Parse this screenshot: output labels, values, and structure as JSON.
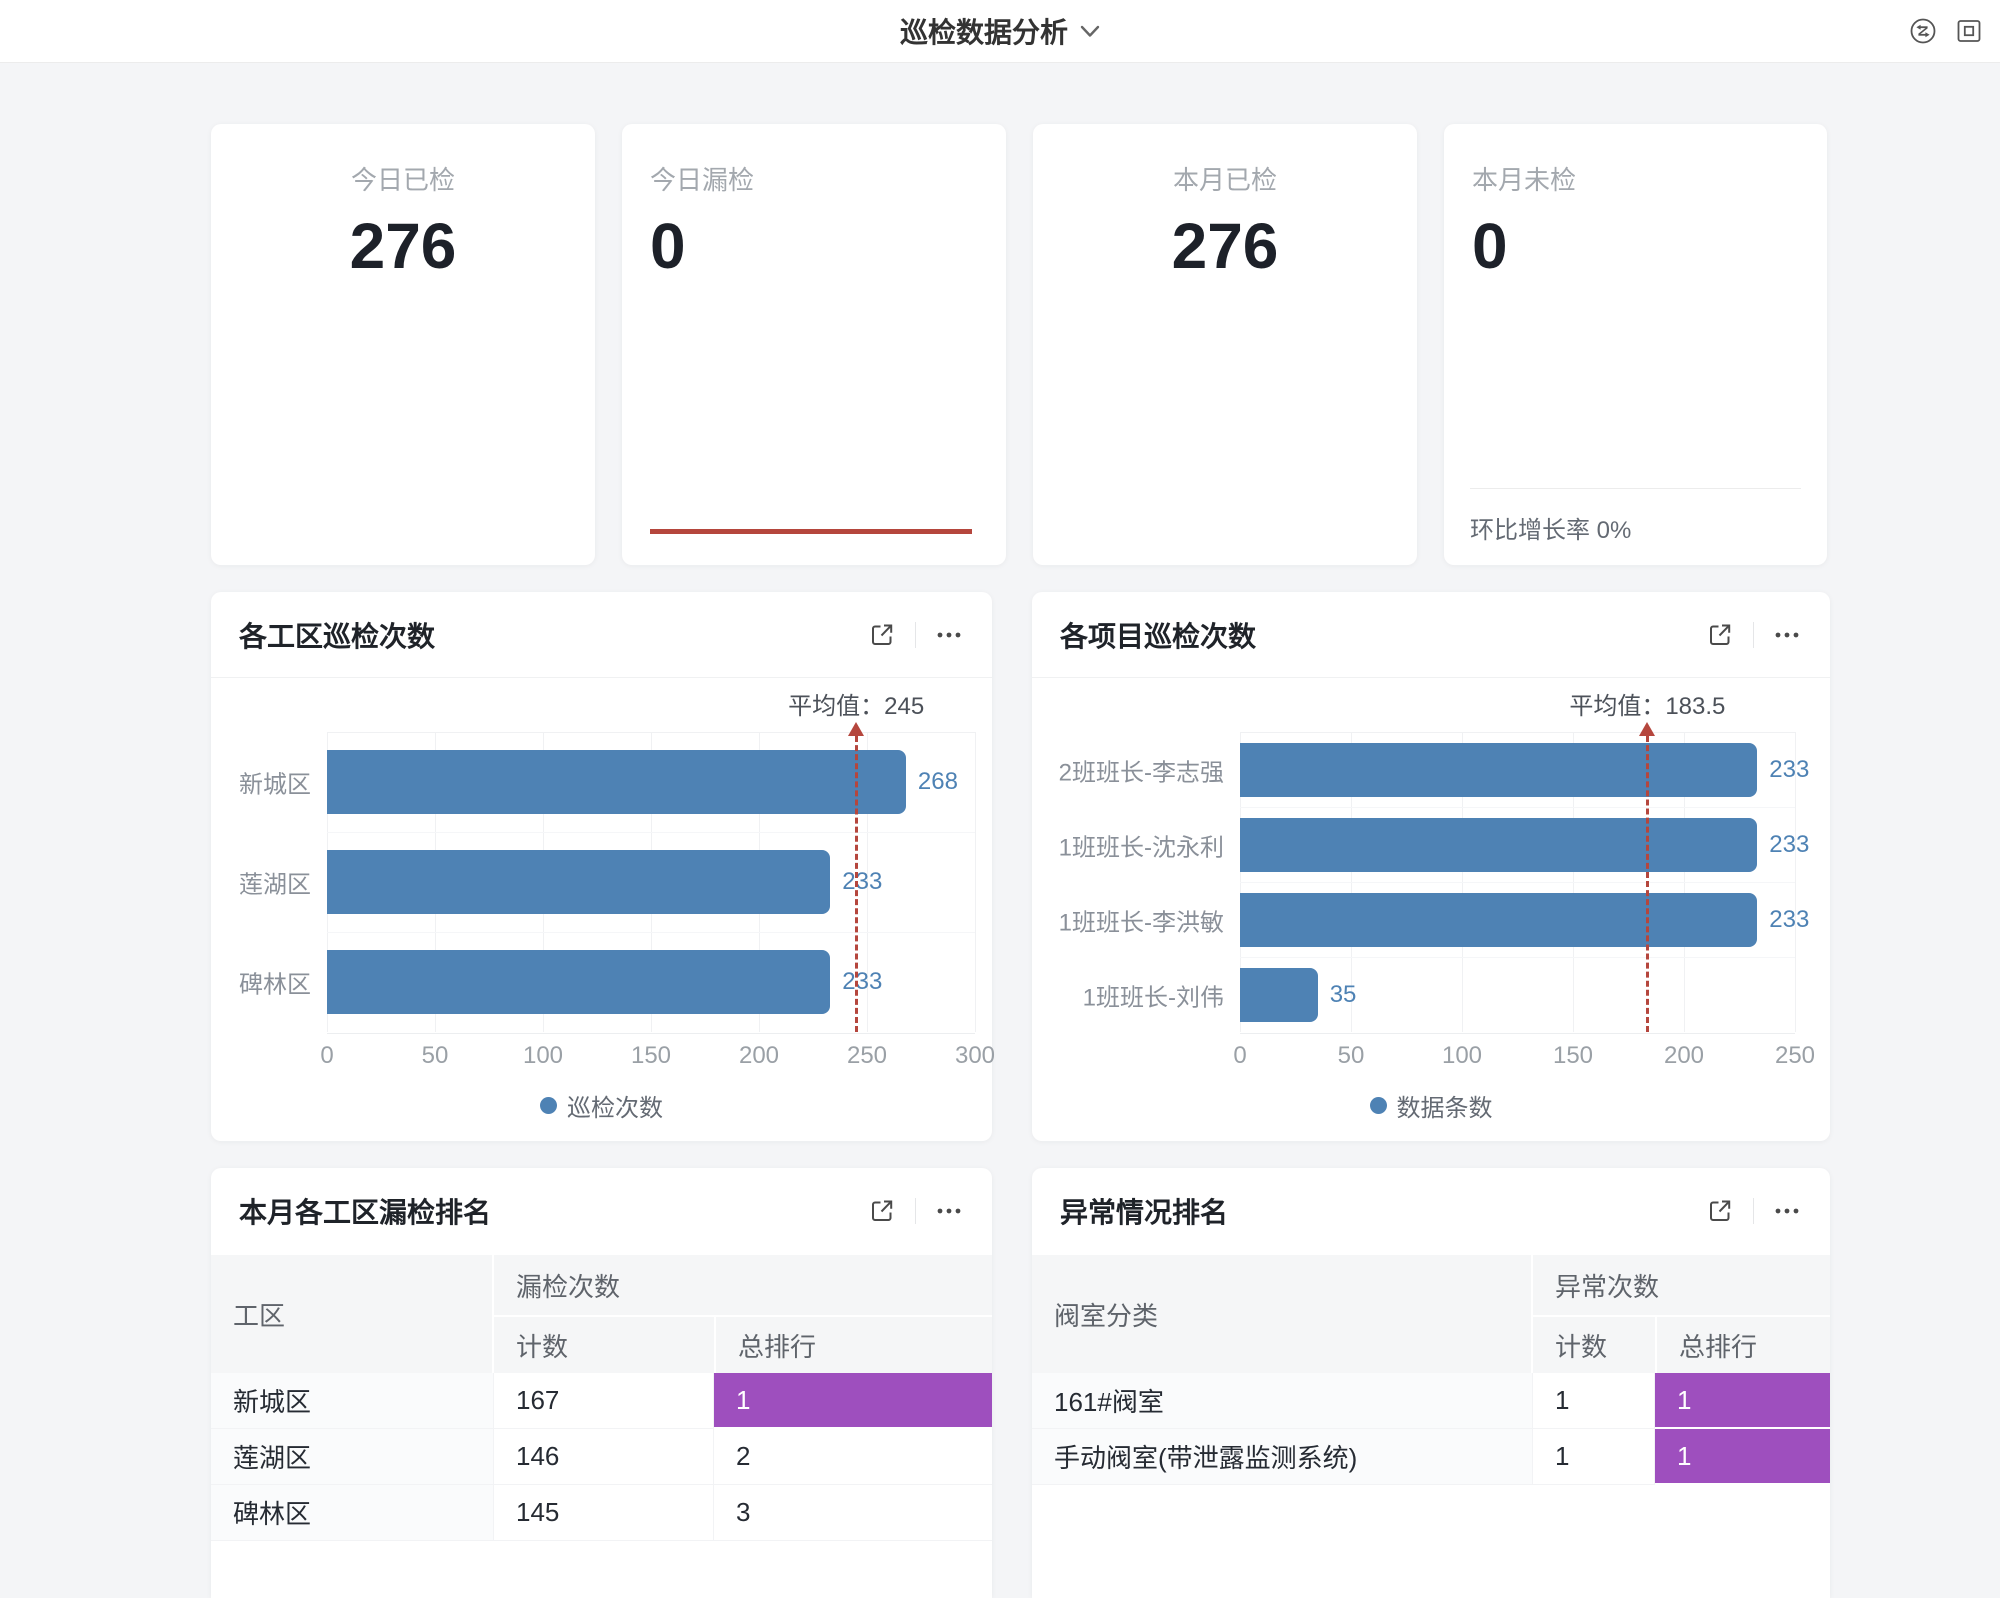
{
  "header": {
    "title": "巡检数据分析",
    "icons": [
      "chevron-down-icon",
      "sync-icon",
      "screen-frame-icon"
    ]
  },
  "stats": [
    {
      "label": "今日已检",
      "value": "276"
    },
    {
      "label": "今日漏检",
      "value": "0"
    },
    {
      "label": "本月已检",
      "value": "276"
    },
    {
      "label": "本月未检",
      "value": "0",
      "footer": "环比增长率 0%"
    }
  ],
  "colors": {
    "bar_blue": "#4e82b4",
    "value_label_blue": "#4e82b4",
    "average_red": "#b5463d",
    "highlight_purple": "#9e4fbe",
    "trend_line_red": "#b5463d"
  },
  "chart_data": [
    {
      "type": "bar",
      "orientation": "horizontal",
      "title": "各工区巡检次数",
      "categories": [
        "新城区",
        "莲湖区",
        "碑林区"
      ],
      "values": [
        268,
        233,
        233
      ],
      "series": [
        {
          "name": "巡检次数",
          "values": [
            268,
            233,
            233
          ]
        }
      ],
      "legend": [
        "巡检次数"
      ],
      "legend_position": "bottom",
      "xlim": [
        0,
        300
      ],
      "xticks": [
        0,
        50,
        100,
        150,
        200,
        250,
        300
      ],
      "grid": true,
      "average": 245,
      "average_label": "平均值：245",
      "bar_color": "#4e82b4",
      "value_label_color": "#4e82b4",
      "average_line_color": "#b5463d"
    },
    {
      "type": "bar",
      "orientation": "horizontal",
      "title": "各项目巡检次数",
      "categories": [
        "2班班长-李志强",
        "1班班长-沈永利",
        "1班班长-李洪敏",
        "1班班长-刘伟"
      ],
      "values": [
        233,
        233,
        233,
        35
      ],
      "series": [
        {
          "name": "数据条数",
          "values": [
            233,
            233,
            233,
            35
          ]
        }
      ],
      "legend": [
        "数据条数"
      ],
      "legend_position": "bottom",
      "xlim": [
        0,
        250
      ],
      "xticks": [
        0,
        50,
        100,
        150,
        200,
        250
      ],
      "grid": true,
      "average": 183.5,
      "average_label": "平均值：183.5",
      "bar_color": "#4e82b4",
      "value_label_color": "#4e82b4",
      "average_line_color": "#b5463d"
    }
  ],
  "tables": [
    {
      "title": "本月各工区漏检排名",
      "row_header": "工区",
      "group_header": "漏检次数",
      "sub_headers": [
        "计数",
        "总排行"
      ],
      "highlight_color": "#9e4fbe",
      "rows": [
        {
          "name": "新城区",
          "count": "167",
          "rank": "1",
          "highlight": true
        },
        {
          "name": "莲湖区",
          "count": "146",
          "rank": "2",
          "highlight": false
        },
        {
          "name": "碑林区",
          "count": "145",
          "rank": "3",
          "highlight": false
        }
      ]
    },
    {
      "title": "异常情况排名",
      "row_header": "阀室分类",
      "group_header": "异常次数",
      "sub_headers": [
        "计数",
        "总排行"
      ],
      "highlight_color": "#9e4fbe",
      "rows": [
        {
          "name": "161#阀室",
          "count": "1",
          "rank": "1",
          "highlight": true
        },
        {
          "name": "手动阀室(带泄露监测系统)",
          "count": "1",
          "rank": "1",
          "highlight": true
        }
      ]
    }
  ]
}
